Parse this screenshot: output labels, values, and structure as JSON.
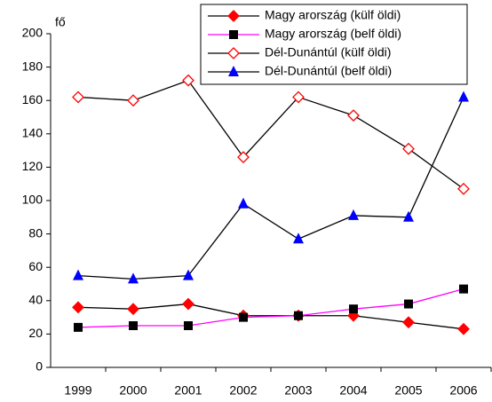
{
  "chart_data": {
    "type": "line",
    "y_label": "fő",
    "categories": [
      "1999",
      "2000",
      "2001",
      "2002",
      "2003",
      "2004",
      "2005",
      "2006"
    ],
    "series": [
      {
        "name": "Magy arország (külf öldi)",
        "color": "#000000",
        "marker": "diamond",
        "marker_color": "#ff0000",
        "values": [
          36,
          35,
          38,
          31,
          31,
          31,
          27,
          23
        ]
      },
      {
        "name": "Magy arország (belf öldi)",
        "color": "#ff00ff",
        "marker": "square",
        "marker_color": "#000000",
        "values": [
          24,
          25,
          25,
          30,
          31,
          35,
          38,
          47
        ]
      },
      {
        "name": "Dél-Dunántúl (külf öldi)",
        "color": "#000000",
        "marker": "open-diamond",
        "marker_color": "#ff0000",
        "values": [
          162,
          160,
          172,
          126,
          162,
          151,
          131,
          107
        ]
      },
      {
        "name": "Dél-Dunántúl (belf öldi)",
        "color": "#000000",
        "marker": "triangle",
        "marker_color": "#0000ff",
        "values": [
          55,
          53,
          55,
          98,
          77,
          91,
          90,
          162
        ]
      }
    ],
    "ylim": [
      0,
      200
    ],
    "yticks": [
      0,
      20,
      40,
      60,
      80,
      100,
      120,
      140,
      160,
      180,
      200
    ],
    "legend": "top-right"
  }
}
